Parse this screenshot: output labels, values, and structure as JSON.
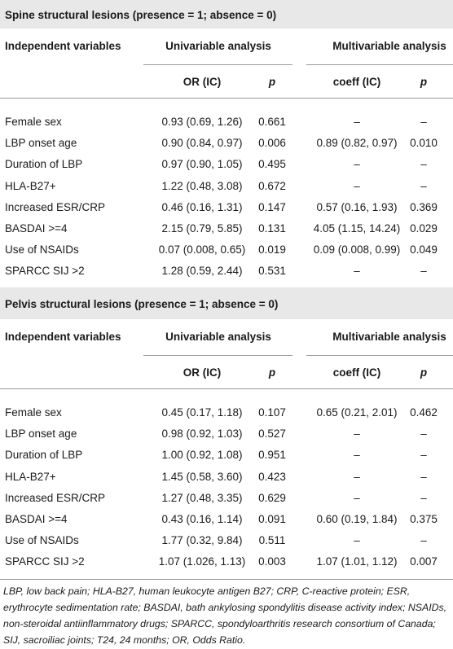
{
  "sections": [
    {
      "title": "Spine structural lesions (presence = 1; absence = 0)",
      "header": [
        "Independent variables",
        "Univariable analysis",
        "Multivariable analysis"
      ],
      "subheader": [
        "OR (IC)",
        "p",
        "coeff (IC)",
        "p"
      ],
      "rows": [
        [
          "Female sex",
          "0.93 (0.69, 1.26)",
          "0.661",
          "–",
          "–"
        ],
        [
          "LBP onset age",
          "0.90 (0.84, 0.97)",
          "0.006",
          "0.89 (0.82, 0.97)",
          "0.010"
        ],
        [
          "Duration of LBP",
          "0.97 (0.90, 1.05)",
          "0.495",
          "–",
          "–"
        ],
        [
          "HLA-B27+",
          "1.22 (0.48, 3.08)",
          "0.672",
          "–",
          "–"
        ],
        [
          "Increased ESR/CRP",
          "0.46 (0.16, 1.31)",
          "0.147",
          "0.57 (0.16, 1.93)",
          "0.369"
        ],
        [
          "BASDAI >=4",
          "2.15 (0.79, 5.85)",
          "0.131",
          "4.05 (1.15, 14.24)",
          "0.029"
        ],
        [
          "Use of NSAIDs",
          "0.07 (0.008, 0.65)",
          "0.019",
          "0.09 (0.008, 0.99)",
          "0.049"
        ],
        [
          "SPARCC SIJ >2",
          "1.28 (0.59, 2.44)",
          "0.531",
          "–",
          "–"
        ]
      ]
    },
    {
      "title": "Pelvis structural lesions (presence = 1; absence = 0)",
      "header": [
        "Independent variables",
        "Univariable analysis",
        "Multivariable analysis"
      ],
      "subheader": [
        "OR (IC)",
        "p",
        "coeff (IC)",
        "p"
      ],
      "rows": [
        [
          "Female sex",
          "0.45 (0.17, 1.18)",
          "0.107",
          "0.65 (0.21, 2.01)",
          "0.462"
        ],
        [
          "LBP onset age",
          "0.98 (0.92, 1.03)",
          "0.527",
          "–",
          "–"
        ],
        [
          "Duration of LBP",
          "1.00 (0.92, 1.08)",
          "0.951",
          "–",
          "–"
        ],
        [
          "HLA-B27+",
          "1.45 (0.58, 3.60)",
          "0.423",
          "–",
          "–"
        ],
        [
          "Increased ESR/CRP",
          "1.27 (0.48, 3.35)",
          "0.629",
          "–",
          "–"
        ],
        [
          "BASDAI >=4",
          "0.43 (0.16, 1.14)",
          "0.091",
          "0.60 (0.19, 1.84)",
          "0.375"
        ],
        [
          "Use of NSAIDs",
          "1.77 (0.32, 9.84)",
          "0.511",
          "–",
          "–"
        ],
        [
          "SPARCC SIJ >2",
          "1.07 (1.026, 1.13)",
          "0.003",
          "1.07 (1.01, 1.12)",
          "0.007"
        ]
      ]
    }
  ],
  "footnote": "LBP, low back pain; HLA-B27, human leukocyte antigen B27; CRP, C-reactive protein; ESR, erythrocyte sedimentation rate; BASDAI, bath ankylosing spondylitis disease activity index; NSAIDs, non-steroidal antiinflammatory drugs; SPARCC, spondyloarthritis research consortium of Canada; SIJ, sacroiliac joints; T24, 24 months; OR, Odds Ratio."
}
